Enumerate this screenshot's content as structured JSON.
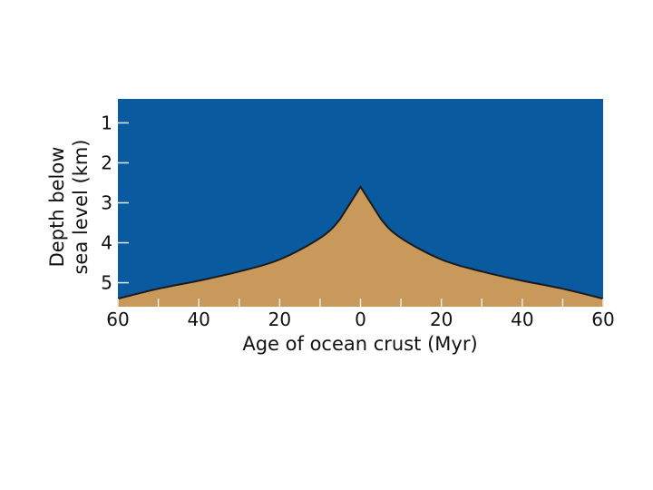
{
  "chart_data": {
    "type": "area",
    "title": "",
    "xlabel": "Age of ocean crust (Myr)",
    "ylabel_line1": "Depth below",
    "ylabel_line2": "sea level (km)",
    "x_tick_labels": [
      "60",
      "40",
      "20",
      "0",
      "20",
      "40",
      "60"
    ],
    "y_tick_labels": [
      "1",
      "2",
      "3",
      "4",
      "5"
    ],
    "xlim": [
      -60,
      60
    ],
    "ylim_depth_km": [
      0.4,
      5.6
    ],
    "y_inverted": true,
    "grid": false,
    "legend": "none",
    "series": [
      {
        "x": [
          -60,
          -50,
          -40,
          -30,
          -20,
          -10,
          -5,
          0,
          5,
          10,
          20,
          30,
          40,
          50,
          60
        ],
        "y": [
          5.4,
          5.15,
          4.95,
          4.72,
          4.42,
          3.88,
          3.4,
          2.6,
          3.4,
          3.88,
          4.42,
          4.72,
          4.95,
          5.15,
          5.4
        ]
      }
    ],
    "colors": {
      "ocean": "#0a5aa0",
      "crust": "#c8995a",
      "outline": "#1a1a1a",
      "tick": "#e8e8e8"
    }
  }
}
